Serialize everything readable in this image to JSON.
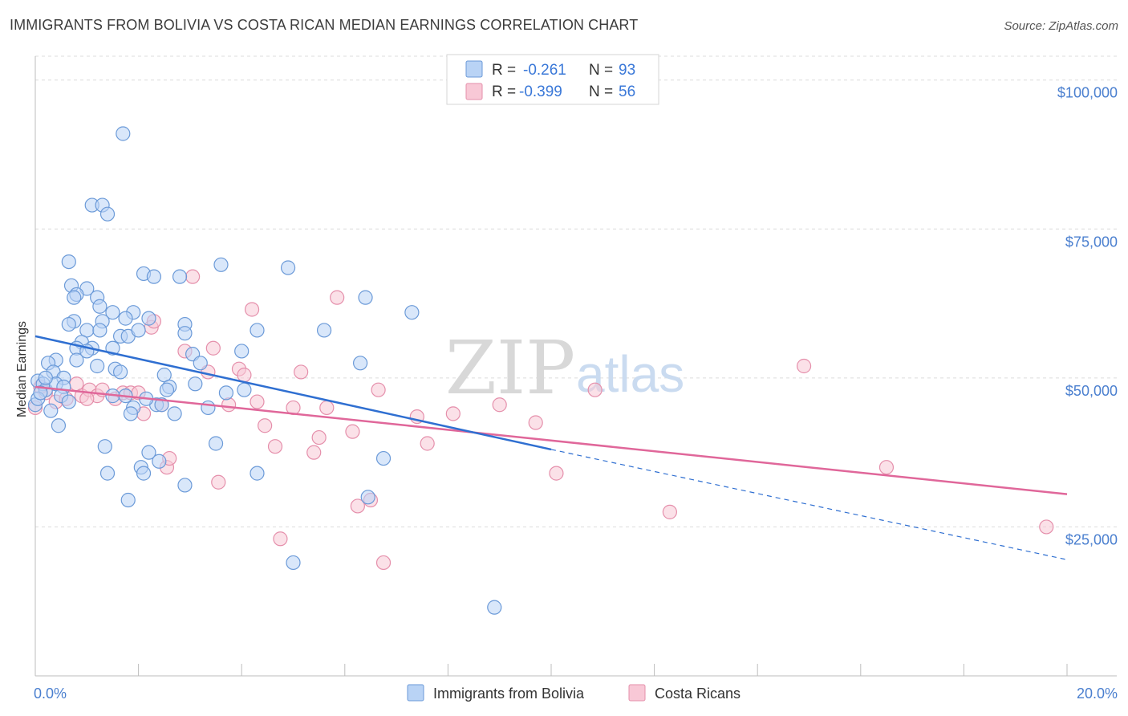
{
  "title": "IMMIGRANTS FROM BOLIVIA VS COSTA RICAN MEDIAN EARNINGS CORRELATION CHART",
  "source": "Source: ZipAtlas.com",
  "watermark": {
    "zip": "ZIP",
    "atlas": "atlas"
  },
  "colors": {
    "blue_fill": "#b9d3f5",
    "blue_stroke": "#6b9ad8",
    "blue_line": "#2f6fd1",
    "pink_fill": "#f8c8d6",
    "pink_stroke": "#e58fab",
    "pink_line": "#e0679a"
  },
  "legend": {
    "r_label": "R =",
    "n_label": "N =",
    "series": [
      {
        "r": "-0.261",
        "n": "93"
      },
      {
        "r": "-0.399",
        "n": "56"
      }
    ]
  },
  "chart_data": {
    "type": "scatter",
    "xlabel": "",
    "ylabel": "Median Earnings",
    "xlim": [
      0,
      20
    ],
    "ylim": [
      0,
      104000
    ],
    "x_tick_labels": [
      "0.0%",
      "20.0%"
    ],
    "y_ticks": [
      25000,
      50000,
      75000,
      100000
    ],
    "y_tick_labels": [
      "$25,000",
      "$50,000",
      "$75,000",
      "$100,000"
    ],
    "series": [
      {
        "name": "Immigrants from Bolivia",
        "trend": {
          "x0": 0,
          "y0": 57000,
          "x1": 10,
          "y1": 38000,
          "x_dash_end": 20,
          "y_dash_end": 19500
        },
        "points": [
          [
            1.7,
            91000
          ],
          [
            1.1,
            79000
          ],
          [
            1.3,
            79000
          ],
          [
            1.4,
            77500
          ],
          [
            0.65,
            69500
          ],
          [
            3.6,
            69000
          ],
          [
            4.9,
            68500
          ],
          [
            2.1,
            67500
          ],
          [
            2.3,
            67000
          ],
          [
            2.8,
            67000
          ],
          [
            0.7,
            65500
          ],
          [
            1.0,
            65000
          ],
          [
            0.8,
            64000
          ],
          [
            0.75,
            63500
          ],
          [
            1.2,
            63500
          ],
          [
            6.4,
            63500
          ],
          [
            1.25,
            62000
          ],
          [
            1.5,
            61000
          ],
          [
            1.9,
            61000
          ],
          [
            1.75,
            60000
          ],
          [
            2.2,
            60000
          ],
          [
            1.3,
            59500
          ],
          [
            7.3,
            61000
          ],
          [
            0.75,
            59500
          ],
          [
            0.65,
            59000
          ],
          [
            2.9,
            59000
          ],
          [
            4.3,
            58000
          ],
          [
            5.6,
            58000
          ],
          [
            1.0,
            58000
          ],
          [
            1.25,
            58000
          ],
          [
            2.9,
            57500
          ],
          [
            1.65,
            57000
          ],
          [
            1.8,
            57000
          ],
          [
            0.9,
            56000
          ],
          [
            1.1,
            55000
          ],
          [
            0.8,
            55000
          ],
          [
            1.0,
            54500
          ],
          [
            4.0,
            54500
          ],
          [
            3.05,
            54000
          ],
          [
            0.4,
            53000
          ],
          [
            0.8,
            53000
          ],
          [
            0.25,
            52500
          ],
          [
            6.3,
            52500
          ],
          [
            3.2,
            52500
          ],
          [
            1.55,
            51500
          ],
          [
            1.65,
            51000
          ],
          [
            0.35,
            51000
          ],
          [
            0.55,
            50000
          ],
          [
            0.05,
            49500
          ],
          [
            0.15,
            49000
          ],
          [
            2.5,
            50500
          ],
          [
            3.1,
            49000
          ],
          [
            0.2,
            48000
          ],
          [
            0.4,
            49000
          ],
          [
            0.55,
            48500
          ],
          [
            2.6,
            48500
          ],
          [
            4.05,
            48000
          ],
          [
            2.55,
            48000
          ],
          [
            0.5,
            47000
          ],
          [
            0.65,
            46000
          ],
          [
            1.5,
            47000
          ],
          [
            1.75,
            47000
          ],
          [
            0.0,
            45500
          ],
          [
            2.35,
            45500
          ],
          [
            2.45,
            45500
          ],
          [
            3.35,
            45000
          ],
          [
            1.9,
            45000
          ],
          [
            1.85,
            44000
          ],
          [
            2.7,
            44000
          ],
          [
            0.45,
            42000
          ],
          [
            1.35,
            38500
          ],
          [
            3.5,
            39000
          ],
          [
            2.2,
            37500
          ],
          [
            6.75,
            36500
          ],
          [
            2.4,
            36000
          ],
          [
            2.05,
            35000
          ],
          [
            2.1,
            34000
          ],
          [
            1.4,
            34000
          ],
          [
            4.3,
            34000
          ],
          [
            2.9,
            32000
          ],
          [
            6.45,
            30000
          ],
          [
            1.8,
            29500
          ],
          [
            5.0,
            19000
          ],
          [
            8.9,
            11500
          ],
          [
            0.05,
            46500
          ],
          [
            0.1,
            47500
          ],
          [
            0.3,
            44500
          ],
          [
            1.2,
            52000
          ],
          [
            2.15,
            46500
          ],
          [
            3.7,
            47500
          ],
          [
            0.2,
            50000
          ],
          [
            1.5,
            55000
          ],
          [
            2.0,
            58000
          ]
        ]
      },
      {
        "name": "Costa Ricans",
        "trend": {
          "x0": 0,
          "y0": 48500,
          "x1": 20,
          "y1": 30500
        },
        "points": [
          [
            0.0,
            45000
          ],
          [
            0.2,
            47500
          ],
          [
            0.4,
            46000
          ],
          [
            0.6,
            46500
          ],
          [
            0.8,
            49000
          ],
          [
            0.9,
            47000
          ],
          [
            1.05,
            48000
          ],
          [
            1.2,
            47000
          ],
          [
            1.3,
            48000
          ],
          [
            1.55,
            46500
          ],
          [
            1.7,
            47500
          ],
          [
            1.85,
            47500
          ],
          [
            2.1,
            44000
          ],
          [
            2.25,
            58500
          ],
          [
            2.3,
            59500
          ],
          [
            2.55,
            35000
          ],
          [
            2.6,
            36500
          ],
          [
            2.9,
            54500
          ],
          [
            3.05,
            67000
          ],
          [
            3.35,
            51000
          ],
          [
            3.45,
            55000
          ],
          [
            3.55,
            32500
          ],
          [
            3.75,
            45500
          ],
          [
            3.95,
            51500
          ],
          [
            4.05,
            50500
          ],
          [
            4.2,
            61500
          ],
          [
            4.3,
            46000
          ],
          [
            4.45,
            42000
          ],
          [
            4.65,
            38500
          ],
          [
            4.75,
            23000
          ],
          [
            5.0,
            45000
          ],
          [
            5.15,
            51000
          ],
          [
            5.4,
            37500
          ],
          [
            5.5,
            40000
          ],
          [
            5.65,
            45000
          ],
          [
            5.85,
            63500
          ],
          [
            6.15,
            41000
          ],
          [
            6.25,
            28500
          ],
          [
            6.5,
            29500
          ],
          [
            6.65,
            48000
          ],
          [
            6.75,
            19000
          ],
          [
            7.4,
            43500
          ],
          [
            7.6,
            39000
          ],
          [
            8.1,
            44000
          ],
          [
            9.0,
            45500
          ],
          [
            9.7,
            42500
          ],
          [
            10.1,
            34000
          ],
          [
            10.85,
            48000
          ],
          [
            12.3,
            27500
          ],
          [
            14.9,
            52000
          ],
          [
            16.5,
            35000
          ],
          [
            19.6,
            25000
          ],
          [
            0.1,
            48500
          ],
          [
            1.0,
            46500
          ],
          [
            2.0,
            47500
          ],
          [
            2.45,
            45500
          ]
        ]
      }
    ]
  }
}
